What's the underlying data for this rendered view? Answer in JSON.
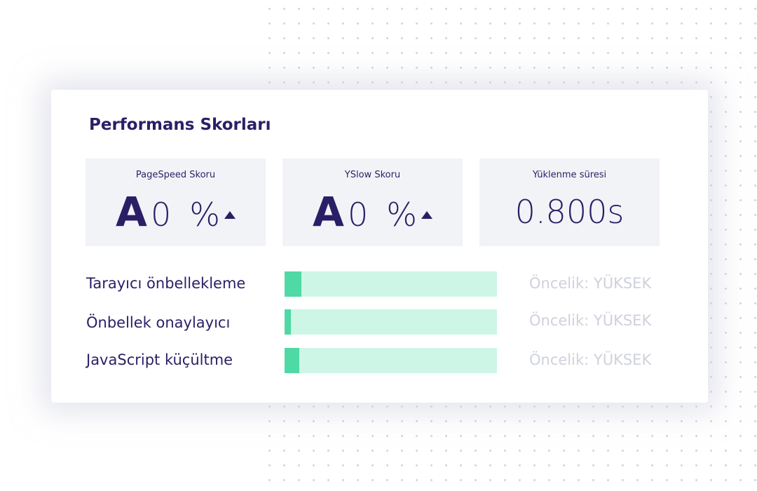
{
  "panel": {
    "title": "Performans Skorları"
  },
  "scores": {
    "pagespeed": {
      "label": "PageSpeed Skoru",
      "grade": "A",
      "percent": "0",
      "unit": "%",
      "trend_icon": "triangle-up-icon"
    },
    "yslow": {
      "label": "YSlow Skoru",
      "grade": "A",
      "percent": "0",
      "unit": "%",
      "trend_icon": "triangle-up-icon"
    },
    "load_time": {
      "label": "Yüklenme süresi",
      "value": "0.800s"
    }
  },
  "rules": [
    {
      "label": "Tarayıcı önbellekleme",
      "progress_percent": 8,
      "priority": "Öncelik: YÜKSEK"
    },
    {
      "label": "Önbellek onaylayıcı",
      "progress_percent": 3,
      "priority": "Öncelik: YÜKSEK"
    },
    {
      "label": "JavaScript küçültme",
      "progress_percent": 7,
      "priority": "Öncelik: YÜKSEK"
    }
  ],
  "colors": {
    "text_primary": "#2a1f66",
    "bar_track": "#cdf6e6",
    "bar_fill": "#4fd9a4",
    "priority_text": "#cfd1dc"
  }
}
